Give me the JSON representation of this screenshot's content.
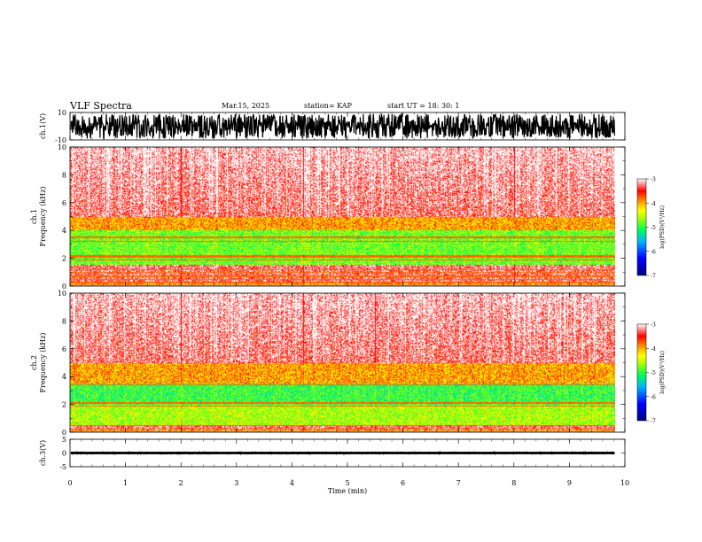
{
  "header": {
    "title": "VLF Spectra",
    "date": "Mar.15, 2025",
    "station": "station= KAP",
    "start": "start  UT  =   18: 30: 1"
  },
  "colors": {
    "spec_low": "#0000ff",
    "spec_mid": "#00ff00",
    "spec_mid2": "#ffff00",
    "spec_high": "#ff0000",
    "background": "#ffffff",
    "waveform": "#000000"
  },
  "chart_data": [
    {
      "type": "line",
      "name": "ch1-waveform",
      "ylabel": "ch.1(V)",
      "ylim": [
        -10,
        10
      ],
      "y_ticks": [
        "10",
        "-10"
      ],
      "x_range": [
        0,
        10
      ],
      "data_extent_min": 9.83,
      "waveform_amplitude": "approx -9 to 9 V, dense oscillation"
    },
    {
      "type": "heatmap",
      "name": "ch1-spectrogram",
      "ylabel": "ch.1\nFrequency  (kHz)",
      "ylim": [
        0,
        10
      ],
      "y_ticks": [
        "0",
        "2",
        "4",
        "6",
        "8",
        "10"
      ],
      "x_range": [
        0,
        10
      ],
      "colorbar": {
        "label": "log(PSD)(V²/Hz)",
        "range": [
          -7,
          -3
        ],
        "ticks": [
          "-3",
          "-4",
          "-5",
          "-6",
          "-7"
        ]
      },
      "dominant_bands_khz": [
        {
          "from": 1.5,
          "to": 4.0,
          "level": -4.8
        },
        {
          "from": 4.0,
          "to": 5.0,
          "level": -4.0
        },
        {
          "from": 5.0,
          "to": 10.0,
          "level": -3.3
        }
      ],
      "lines_khz": [
        0.2,
        0.3,
        0.5,
        0.7,
        1.0,
        1.2,
        1.9,
        2.1,
        2.2,
        3.2,
        3.5
      ],
      "vertical_features_min": [
        2.0,
        4.2,
        8.0
      ]
    },
    {
      "type": "heatmap",
      "name": "ch2-spectrogram",
      "ylabel": "ch.2\nFrequency  (kHz)",
      "ylim": [
        0,
        10
      ],
      "y_ticks": [
        "0",
        "2",
        "4",
        "6",
        "8",
        "10"
      ],
      "x_range": [
        0,
        10
      ],
      "colorbar": {
        "label": "log(PSD)(V²/Hz)",
        "range": [
          -7,
          -3
        ],
        "ticks": [
          "-3",
          "-4",
          "-5",
          "-6",
          "-7"
        ]
      },
      "dominant_bands_khz": [
        {
          "from": 0.5,
          "to": 2.0,
          "level": -4.6
        },
        {
          "from": 2.0,
          "to": 3.5,
          "level": -5.0
        },
        {
          "from": 3.5,
          "to": 5.0,
          "level": -4.0
        },
        {
          "from": 5.0,
          "to": 10.0,
          "level": -3.3
        }
      ],
      "lines_khz": [
        0.2,
        0.5,
        1.9,
        2.1,
        3.4
      ],
      "vertical_features_min": [
        2.0,
        4.2,
        5.5
      ]
    },
    {
      "type": "line",
      "name": "ch3-waveform",
      "ylabel": "ch.3(V)",
      "ylim": [
        -5,
        5
      ],
      "y_ticks": [
        "5",
        "0",
        "-5"
      ],
      "x_range": [
        0,
        10
      ],
      "data_extent_min": 9.83,
      "waveform_amplitude": "approx -0.4 to 0.4 V around 0"
    }
  ],
  "xaxis": {
    "label": "Time  (min)",
    "ticks": [
      "0",
      "1",
      "2",
      "3",
      "4",
      "5",
      "6",
      "7",
      "8",
      "9",
      "10"
    ]
  }
}
